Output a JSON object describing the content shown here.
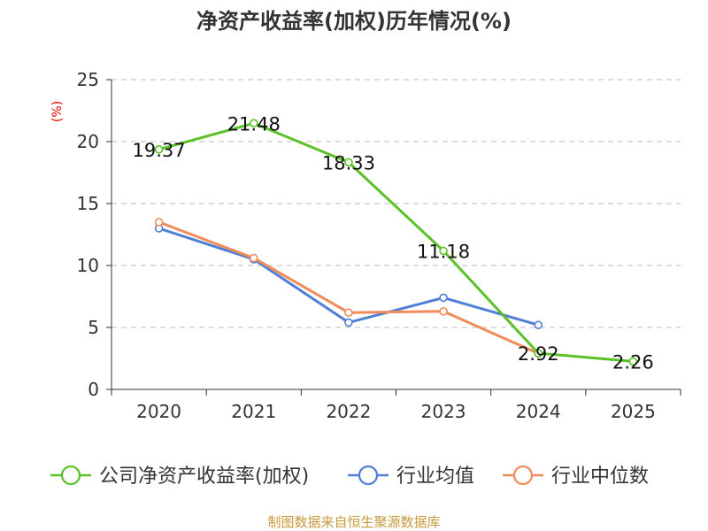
{
  "chart_data": {
    "type": "line",
    "title": "净资产收益率(加权)历年情况(%)",
    "ylabel": "(%)",
    "xlabel": "",
    "categories": [
      "2020",
      "2021",
      "2022",
      "2023",
      "2024",
      "2025"
    ],
    "ylim": [
      0,
      25
    ],
    "yticks": [
      0,
      5,
      10,
      15,
      20,
      25
    ],
    "grid": true,
    "legend_position": "bottom",
    "series": [
      {
        "name": "公司净资产收益率(加权)",
        "color": "#5ac228",
        "values": [
          19.37,
          21.48,
          18.33,
          11.18,
          2.92,
          2.26
        ],
        "labels": [
          "19.37",
          "21.48",
          "18.33",
          "11.18",
          "2.92",
          "2.26"
        ]
      },
      {
        "name": "行业均值",
        "color": "#4f7fd6",
        "values": [
          13.0,
          10.5,
          5.4,
          7.4,
          5.2,
          null
        ]
      },
      {
        "name": "行业中位数",
        "color": "#f28b5a",
        "values": [
          13.5,
          10.6,
          6.2,
          6.3,
          2.9,
          null
        ]
      }
    ],
    "source": "制图数据来自恒生聚源数据库"
  }
}
